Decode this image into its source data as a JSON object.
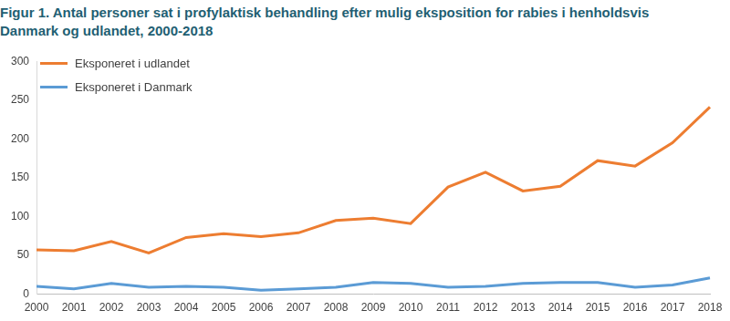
{
  "chart_data": {
    "type": "line",
    "title": "Figur 1. Antal personer sat i profylaktisk behandling efter mulig eksposition for rabies i henholdsvis Danmark og udlandet, 2000-2018",
    "categories": [
      "2000",
      "2001",
      "2002",
      "2003",
      "2004",
      "2005",
      "2006",
      "2007",
      "2008",
      "2009",
      "2010",
      "2011",
      "2012",
      "2013",
      "2014",
      "2015",
      "2016",
      "2017",
      "2018"
    ],
    "series": [
      {
        "name": "Eksponeret i udlandet",
        "color": "#ed7d31",
        "values": [
          57,
          56,
          68,
          53,
          73,
          78,
          74,
          79,
          95,
          98,
          91,
          138,
          157,
          133,
          139,
          172,
          165,
          195,
          241
        ]
      },
      {
        "name": "Eksponeret i Danmark",
        "color": "#5b9bd5",
        "values": [
          10,
          7,
          14,
          9,
          10,
          9,
          5,
          7,
          9,
          15,
          14,
          9,
          10,
          14,
          15,
          15,
          9,
          12,
          21
        ]
      }
    ],
    "ylim": [
      0,
      300
    ],
    "yticks": [
      0,
      50,
      100,
      150,
      200,
      250,
      300
    ],
    "grid": false,
    "legend": "upper left"
  }
}
